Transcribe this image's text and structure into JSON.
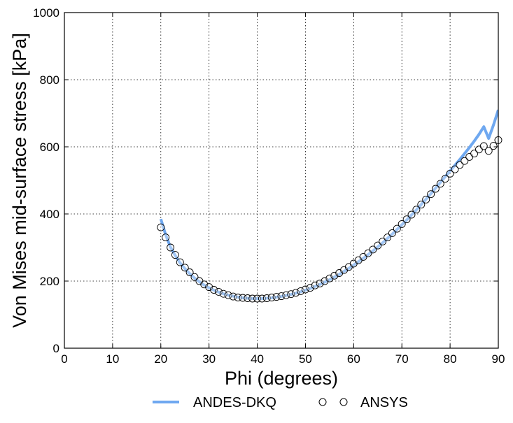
{
  "chart_data": {
    "type": "line",
    "title": "",
    "xlabel": "Phi (degrees)",
    "ylabel": "Von Mises mid-surface stress [kPa]",
    "xlim": [
      0,
      90
    ],
    "ylim": [
      0,
      1000
    ],
    "xticks": [
      0,
      10,
      20,
      30,
      40,
      50,
      60,
      70,
      80,
      90
    ],
    "yticks": [
      0,
      200,
      400,
      600,
      800,
      1000
    ],
    "grid": true,
    "legend": {
      "placement": "bottom-center-outside",
      "entries": [
        "ANDES-DKQ",
        "ANSYS"
      ]
    },
    "series": [
      {
        "name": "ANDES-DKQ",
        "style": "line",
        "color": "#6fa8f0",
        "x": [
          20,
          21,
          22,
          23,
          24,
          25,
          26,
          27,
          28,
          29,
          30,
          31,
          32,
          33,
          34,
          35,
          36,
          37,
          38,
          39,
          40,
          41,
          42,
          43,
          44,
          45,
          46,
          47,
          48,
          49,
          50,
          51,
          52,
          53,
          54,
          55,
          56,
          57,
          58,
          59,
          60,
          61,
          62,
          63,
          64,
          65,
          66,
          67,
          68,
          69,
          70,
          71,
          72,
          73,
          74,
          75,
          76,
          77,
          78,
          79,
          80,
          81,
          82,
          83,
          84,
          85,
          86,
          87,
          88,
          89,
          90
        ],
        "y": [
          385,
          338,
          301,
          276,
          254,
          237,
          222,
          209,
          198,
          188,
          180,
          173,
          167,
          162,
          158,
          155,
          152,
          150,
          149,
          148,
          148,
          148,
          149,
          150,
          152,
          154,
          157,
          160,
          164,
          168,
          173,
          178,
          184,
          190,
          197,
          204,
          212,
          220,
          229,
          238,
          248,
          258,
          268,
          279,
          290,
          302,
          314,
          327,
          340,
          354,
          368,
          382,
          397,
          412,
          428,
          444,
          460,
          477,
          494,
          511,
          528,
          545,
          562,
          580,
          598,
          617,
          637,
          660,
          625,
          665,
          710
        ]
      },
      {
        "name": "ANSYS",
        "style": "markers",
        "marker": "open-circle",
        "x": [
          20,
          21,
          22,
          23,
          24,
          25,
          26,
          27,
          28,
          29,
          30,
          31,
          32,
          33,
          34,
          35,
          36,
          37,
          38,
          39,
          40,
          41,
          42,
          43,
          44,
          45,
          46,
          47,
          48,
          49,
          50,
          51,
          52,
          53,
          54,
          55,
          56,
          57,
          58,
          59,
          60,
          61,
          62,
          63,
          64,
          65,
          66,
          67,
          68,
          69,
          70,
          71,
          72,
          73,
          74,
          75,
          76,
          77,
          78,
          79,
          80,
          81,
          82,
          83,
          84,
          85,
          86,
          87,
          88,
          89,
          90
        ],
        "y": [
          360,
          330,
          300,
          278,
          256,
          240,
          226,
          212,
          200,
          190,
          182,
          174,
          168,
          162,
          158,
          154,
          151,
          150,
          149,
          148,
          148,
          148,
          149,
          151,
          153,
          155,
          158,
          161,
          165,
          170,
          175,
          180,
          187,
          193,
          200,
          208,
          216,
          224,
          233,
          242,
          252,
          262,
          272,
          283,
          294,
          306,
          318,
          330,
          343,
          356,
          370,
          384,
          398,
          413,
          428,
          443,
          459,
          475,
          490,
          505,
          520,
          533,
          546,
          558,
          570,
          580,
          592,
          602,
          588,
          603,
          620
        ]
      }
    ]
  }
}
